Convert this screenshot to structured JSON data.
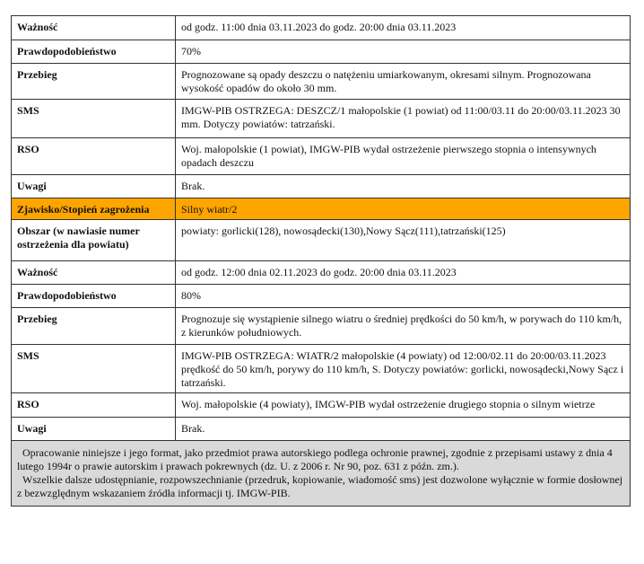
{
  "rows": [
    {
      "label": "Ważność",
      "value": "od godz. 11:00 dnia 03.11.2023 do godz. 20:00 dnia 03.11.2023"
    },
    {
      "label": "Prawdopodobieństwo",
      "value": "70%"
    },
    {
      "label": "Przebieg",
      "value": "Prognozowane są opady deszczu o natężeniu umiarkowanym, okresami silnym. Prognozowana wysokość   opadów do około 30 mm."
    },
    {
      "label": "SMS",
      "value": "IMGW-PIB OSTRZEGA: DESZCZ/1 małopolskie (1 powiat) od 11:00/03.11 do 20:00/03.11.2023 30 mm. Dotyczy powiatów: tatrzański."
    },
    {
      "label": "RSO",
      "value": "Woj. małopolskie (1 powiat), IMGW-PIB wydał ostrzeżenie pierwszego stopnia o intensywnych opadach deszczu"
    },
    {
      "label": "Uwagi",
      "value": "Brak."
    },
    {
      "label": "Zjawisko/Stopień zagrożenia",
      "value": "Silny wiatr/2"
    },
    {
      "label": "Obszar (w nawiasie numer ostrzeżenia dla powiatu)",
      "value": "powiaty: gorlicki(128), nowosądecki(130),Nowy Sącz(111),tatrzański(125)"
    },
    {
      "label": "Ważność",
      "value": "od godz. 12:00 dnia 02.11.2023 do godz. 20:00 dnia 03.11.2023"
    },
    {
      "label": "Prawdopodobieństwo",
      "value": "80%"
    },
    {
      "label": "Przebieg",
      "value": "Prognozuje się wystąpienie silnego wiatru o średniej  prędkości  do 50 km/h, w porywach do 110 km/h, z kierunków południowych."
    },
    {
      "label": "SMS",
      "value": "IMGW-PIB OSTRZEGA: WIATR/2 małopolskie (4 powiaty) od 12:00/02.11 do 20:00/03.11.2023 prędkość   do 50 km/h, porywy do 110 km/h, S. Dotyczy powiatów: gorlicki, nowosądecki,Nowy Sącz i tatrzański."
    },
    {
      "label": "RSO",
      "value": "Woj. małopolskie (4 powiaty), IMGW-PIB wydał ostrzeżenie drugiego stopnia o silnym wietrze"
    },
    {
      "label": "Uwagi",
      "value": "Brak."
    }
  ],
  "footer": {
    "p1": "Opracowanie niniejsze i jego format, jako przedmiot prawa autorskiego podlega ochronie prawnej, zgodnie z przepisami ustawy z dnia 4 lutego 1994r o prawie autorskim i prawach pokrewnych (dz. U. z 2006 r. Nr 90, poz. 631 z późn.  zm.).",
    "p2": "Wszelkie dalsze udostępnianie, rozpowszechnianie (przedruk, kopiowanie, wiadomość   sms) jest dozwolone wyłącznie w formie dosłownej z bezwzględnym wskazaniem źródła  informacji tj. IMGW-PIB."
  },
  "colors": {
    "highlight": "#ffa500",
    "footer_bg": "#d9d9d9"
  }
}
